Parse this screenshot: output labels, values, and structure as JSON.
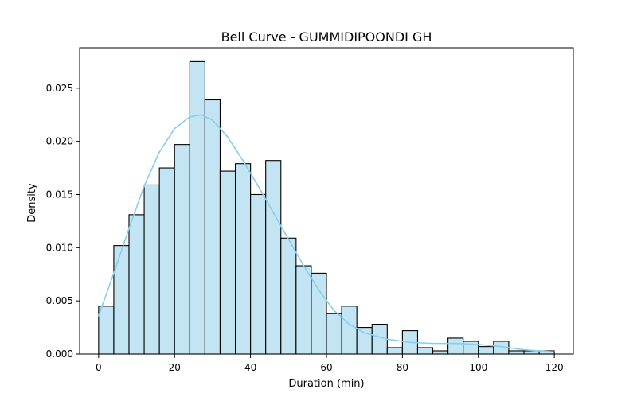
{
  "chart_data": {
    "type": "bar",
    "title": "Bell Curve - GUMMIDIPOONDI GH",
    "xlabel": "Duration (min)",
    "ylabel": "Density",
    "xlim": [
      -5,
      125
    ],
    "ylim": [
      0,
      0.0288
    ],
    "grid": false,
    "x_ticks": [
      0,
      20,
      40,
      60,
      80,
      100,
      120
    ],
    "x_tick_labels": [
      "0",
      "20",
      "40",
      "60",
      "80",
      "100",
      "120"
    ],
    "y_ticks": [
      0,
      0.005,
      0.01,
      0.015,
      0.02,
      0.025
    ],
    "y_tick_labels": [
      "0.000",
      "0.005",
      "0.010",
      "0.015",
      "0.020",
      "0.025"
    ],
    "series": [
      {
        "type": "histogram",
        "bins": [
          [
            0,
            4
          ],
          [
            4,
            8
          ],
          [
            8,
            12
          ],
          [
            12,
            16
          ],
          [
            16,
            20
          ],
          [
            20,
            24
          ],
          [
            24,
            28
          ],
          [
            28,
            32
          ],
          [
            32,
            36
          ],
          [
            36,
            40
          ],
          [
            40,
            44
          ],
          [
            44,
            48
          ],
          [
            48,
            52
          ],
          [
            52,
            56
          ],
          [
            56,
            60
          ],
          [
            60,
            64
          ],
          [
            64,
            68
          ],
          [
            68,
            72
          ],
          [
            72,
            76
          ],
          [
            76,
            80
          ],
          [
            80,
            84
          ],
          [
            84,
            88
          ],
          [
            88,
            92
          ],
          [
            92,
            96
          ],
          [
            96,
            100
          ],
          [
            100,
            104
          ],
          [
            104,
            108
          ],
          [
            108,
            112
          ],
          [
            112,
            116
          ],
          [
            116,
            120
          ]
        ],
        "values": [
          0.0045,
          0.0102,
          0.0131,
          0.0159,
          0.0175,
          0.0197,
          0.0275,
          0.0239,
          0.0172,
          0.0179,
          0.015,
          0.0182,
          0.0109,
          0.0083,
          0.0076,
          0.0038,
          0.0045,
          0.0025,
          0.0028,
          0.0006,
          0.0022,
          0.0006,
          0.0003,
          0.0015,
          0.0012,
          0.0007,
          0.0012,
          0.0003,
          0.0003,
          0.0003
        ],
        "fill": "#c3e4f2",
        "stroke": "#000000"
      },
      {
        "type": "line",
        "x": [
          0,
          4,
          8,
          12,
          16,
          20,
          24,
          27,
          30,
          34,
          38,
          42,
          46,
          50,
          54,
          58,
          62,
          66,
          70,
          76,
          82,
          88,
          94,
          100,
          106,
          112,
          120
        ],
        "y": [
          0.0036,
          0.0076,
          0.0118,
          0.0158,
          0.019,
          0.0212,
          0.0223,
          0.0225,
          0.022,
          0.0204,
          0.0182,
          0.0158,
          0.0133,
          0.0108,
          0.0083,
          0.006,
          0.0041,
          0.0028,
          0.002,
          0.0014,
          0.0011,
          0.001,
          0.001,
          0.0009,
          0.0007,
          0.0004,
          0.0002
        ],
        "color": "#87ceeb"
      }
    ]
  }
}
